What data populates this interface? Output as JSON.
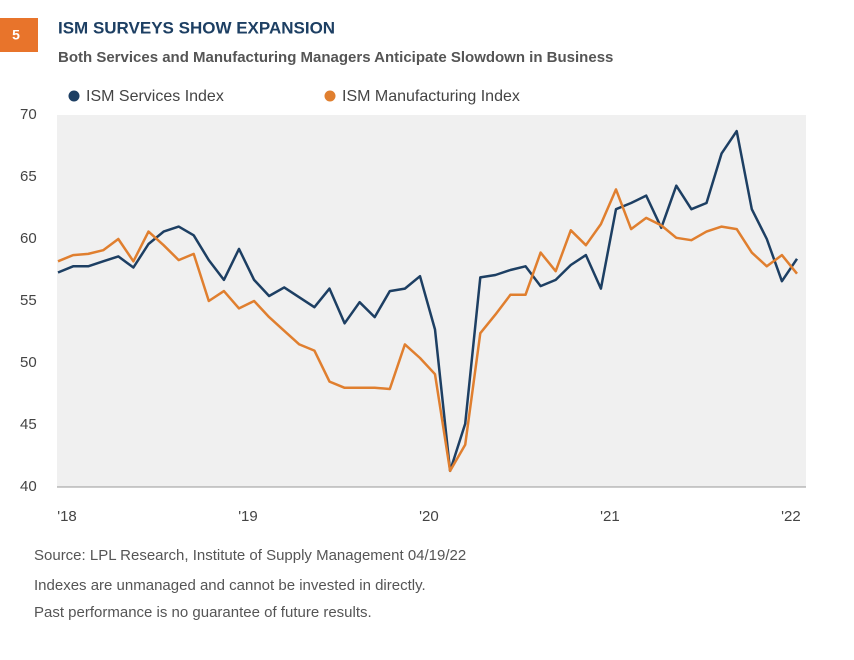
{
  "badge": "5",
  "chart_data": {
    "type": "line",
    "title": "ISM SURVEYS SHOW EXPANSION",
    "subtitle": "Both Services and Manufacturing Managers Anticipate Slowdown in Business",
    "categories": [
      "'18",
      null,
      null,
      null,
      null,
      null,
      null,
      null,
      null,
      null,
      null,
      null,
      "'19",
      null,
      null,
      null,
      null,
      null,
      null,
      null,
      null,
      null,
      null,
      null,
      "'20",
      null,
      null,
      null,
      null,
      null,
      null,
      null,
      null,
      null,
      null,
      null,
      "'21",
      null,
      null,
      null,
      null,
      null,
      null,
      null,
      null,
      null,
      null,
      null,
      "'22",
      null
    ],
    "series": [
      {
        "name": "ISM Services Index",
        "color": "#1d3f63",
        "values": [
          57.3,
          57.8,
          57.8,
          58.2,
          58.6,
          57.7,
          59.6,
          60.6,
          61.0,
          60.3,
          58.3,
          56.7,
          59.2,
          56.7,
          55.4,
          56.1,
          55.3,
          54.5,
          56.0,
          53.2,
          54.9,
          53.7,
          55.8,
          56.0,
          57.0,
          52.7,
          41.3,
          45.1,
          56.9,
          57.1,
          57.5,
          57.8,
          56.2,
          56.7,
          57.9,
          58.7,
          56.0,
          62.4,
          62.9,
          63.5,
          60.9,
          64.3,
          62.4,
          62.9,
          66.9,
          68.7,
          62.4,
          60.0,
          56.6,
          58.4
        ]
      },
      {
        "name": "ISM Manufacturing Index",
        "color": "#e07f2f",
        "values": [
          58.2,
          58.7,
          58.8,
          59.1,
          60.0,
          58.2,
          60.6,
          59.5,
          58.3,
          58.8,
          55.0,
          55.8,
          54.4,
          55.0,
          53.7,
          52.6,
          51.5,
          51.0,
          48.5,
          48.0,
          48.0,
          48.0,
          47.9,
          51.5,
          50.4,
          49.1,
          41.3,
          43.4,
          52.4,
          53.9,
          55.5,
          55.5,
          58.9,
          57.4,
          60.7,
          59.5,
          61.2,
          64.0,
          60.8,
          61.7,
          61.1,
          60.1,
          59.9,
          60.6,
          61.0,
          60.8,
          58.9,
          57.8,
          58.7,
          57.2
        ]
      }
    ],
    "ylim": [
      40,
      70
    ],
    "yticks": [
      40,
      45,
      50,
      55,
      60,
      65,
      70
    ],
    "grid": false,
    "notes": [
      "Source: LPL Research, Institute of Supply Management 04/19/22",
      "Indexes are unmanaged and cannot be invested in directly.",
      "Past performance is no guarantee of future results."
    ]
  }
}
